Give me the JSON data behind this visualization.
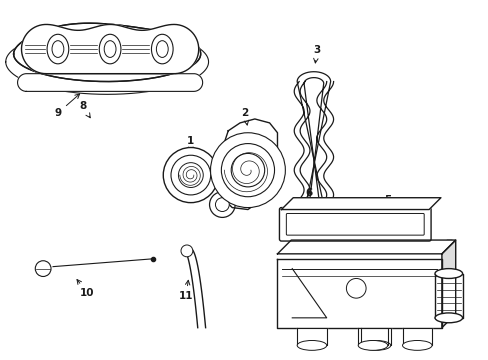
{
  "background_color": "#ffffff",
  "line_color": "#1a1a1a",
  "line_width": 1.0,
  "label_fontsize": 7.5,
  "figsize": [
    4.89,
    3.6
  ],
  "dpi": 100
}
